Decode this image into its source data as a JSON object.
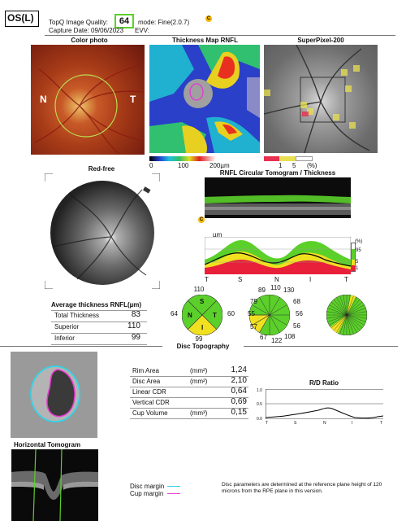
{
  "header": {
    "eye": "OS(L)",
    "quality_label": "TopQ Image Quality:",
    "quality_value": "64",
    "mode": "mode: Fine(2.0.7)",
    "capture_date": "Capture Date: 09/06/2023",
    "evv": "EVV:",
    "c_badge": "C"
  },
  "panels": {
    "color_photo": "Color photo",
    "thickness_map": "Thickness Map RNFL",
    "superpixel": "SuperPixel-200",
    "red_free": "Red-free",
    "rnfl_tomogram": "RNFL Circular Tomogram / Thickness",
    "avg_thickness": "Average thickness RNFL(µm)",
    "disc_topography": "Disc Topography",
    "horizontal_tomogram": "Horizontal Tomogram",
    "rd_ratio": "R/D Ratio"
  },
  "color_photo_labels": {
    "nasal": "N",
    "temporal": "T"
  },
  "thickness_scale": {
    "labels": [
      "0",
      "100",
      "200µm"
    ]
  },
  "superpixel_scale": {
    "labels": [
      "1",
      "5",
      "(%)"
    ]
  },
  "rnfl_chart": {
    "c_badge": "C",
    "unit": "µm",
    "yticks": [
      "200",
      "100",
      "0"
    ],
    "xticks": [
      "T",
      "S",
      "N",
      "I",
      "T"
    ],
    "legend": [
      "(%)",
      "95",
      "5",
      "1"
    ]
  },
  "average_thickness": {
    "rows": [
      {
        "label": "Total Thickness",
        "value": "83"
      },
      {
        "label": "Superior",
        "value": "110"
      },
      {
        "label": "Inferior",
        "value": "99"
      }
    ]
  },
  "quadrant_chart": {
    "values": {
      "top": "110",
      "left": "64",
      "right": "60",
      "bottom": "99"
    },
    "letters": {
      "s": "S",
      "n": "N",
      "t": "T",
      "i": "I"
    }
  },
  "clock_chart": {
    "values": [
      "89",
      "110",
      "130",
      "68",
      "56",
      "56",
      "108",
      "122",
      "67",
      "57",
      "55",
      "79"
    ]
  },
  "disc_params": {
    "rows": [
      {
        "label": "Rim Area",
        "unit": "(mm²)",
        "value": "1,24"
      },
      {
        "label": "Disc Area",
        "unit": "(mm²)",
        "value": "2,10"
      },
      {
        "label": "Linear CDR",
        "unit": "",
        "value": "0,64"
      },
      {
        "label": "Vertical CDR",
        "unit": "",
        "value": "0,69"
      },
      {
        "label": "Cup Volume",
        "unit": "(mm³)",
        "value": "0,15"
      }
    ]
  },
  "rd_chart": {
    "yticks": [
      "1.0",
      "0.5",
      "0.0"
    ],
    "xticks": [
      "T",
      "S",
      "N",
      "I",
      "T"
    ]
  },
  "margins": {
    "disc": "Disc margin",
    "cup": "Cup margin"
  },
  "footnote": "Disc parameters are determined at the reference plane height of 120 microns from the RPE plane in this version.",
  "colors": {
    "disc_margin": "#31d4e8",
    "cup_margin": "#e83bd0",
    "normal_green": "#5bd02a",
    "border_yellow": "#f0e020",
    "abnormal_red": "#e8203a"
  }
}
